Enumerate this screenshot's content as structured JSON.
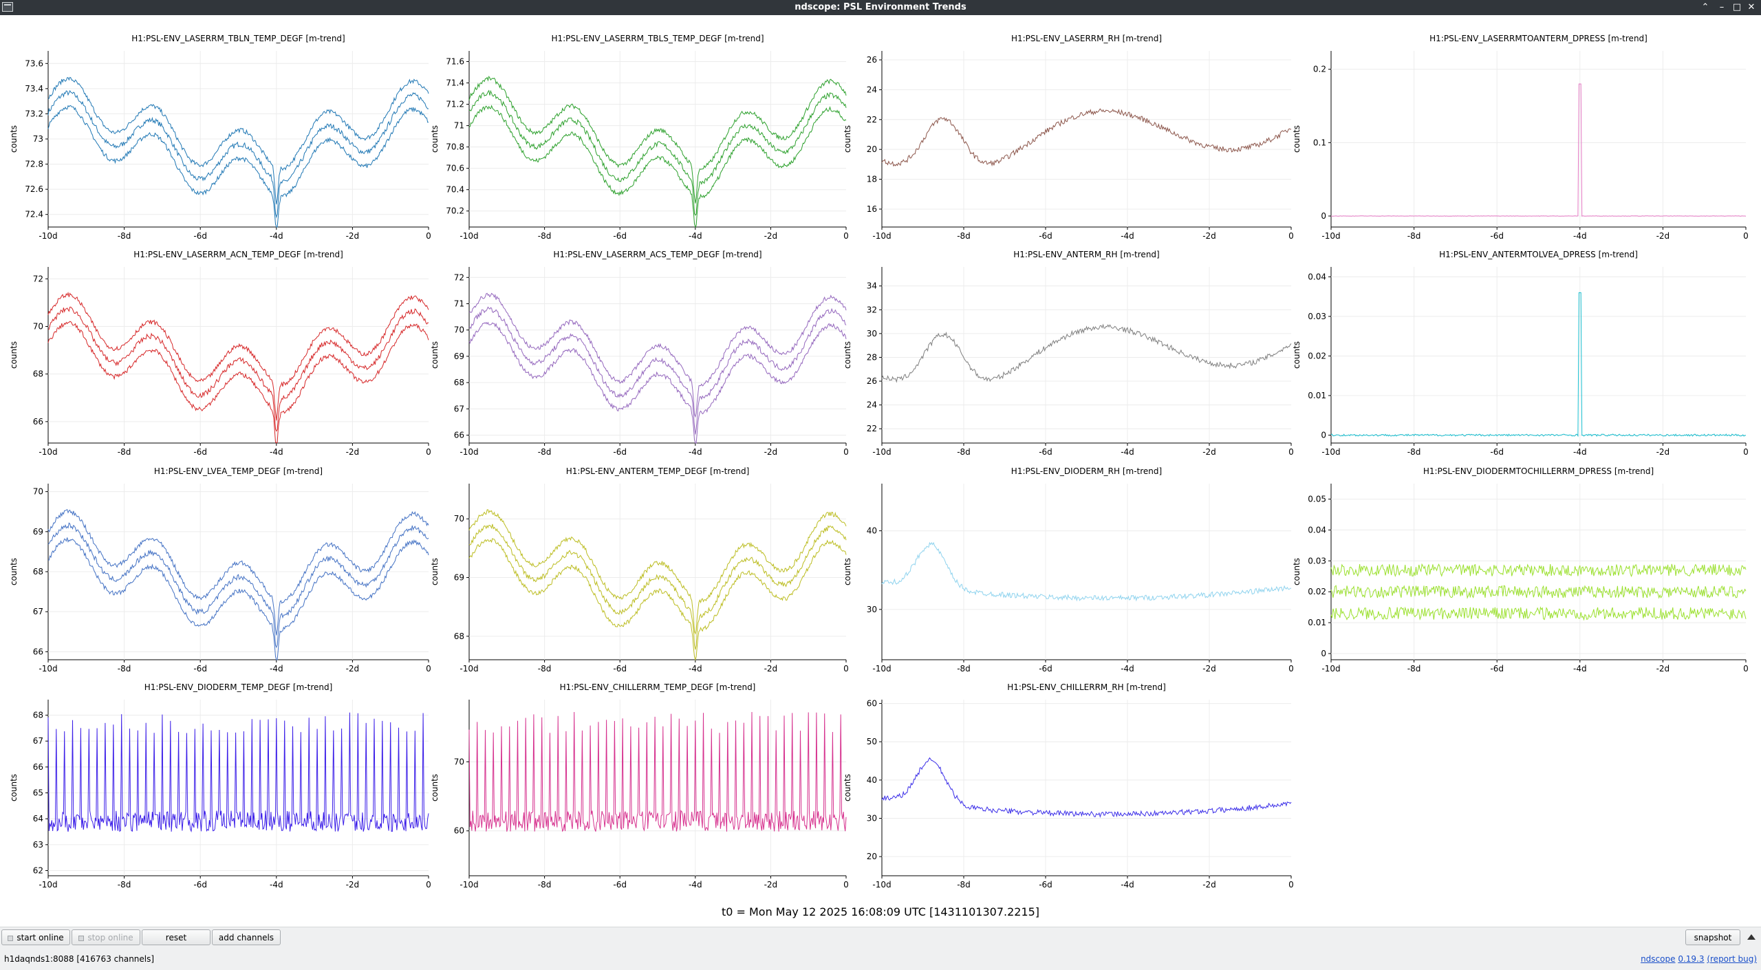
{
  "window": {
    "title": "ndscope: PSL Environment Trends",
    "controls": [
      "minimize-icon",
      "maximize-icon",
      "restore-icon",
      "close-icon"
    ]
  },
  "plots": [
    {
      "title": "H1:PSL-ENV_LASERRM_TBLN_TEMP_DEGF [m-trend]",
      "ylabel": "counts",
      "color": "#1f77b4",
      "style": "band",
      "yticks": [
        "72.4",
        "72.6",
        "72.8",
        "73",
        "73.2",
        "73.4",
        "73.6"
      ],
      "ytick_values": [
        72.4,
        72.6,
        72.8,
        73,
        73.2,
        73.4,
        73.6
      ],
      "ylim": [
        72.3,
        73.7
      ],
      "xticks": [
        "-10d",
        "-8d",
        "-6d",
        "-4d",
        "-2d",
        "0"
      ]
    },
    {
      "title": "H1:PSL-ENV_LASERRM_TBLS_TEMP_DEGF [m-trend]",
      "ylabel": "counts",
      "color": "#2ca02c",
      "style": "band",
      "yticks": [
        "70.2",
        "70.4",
        "70.6",
        "70.8",
        "71",
        "71.2",
        "71.4",
        "71.6"
      ],
      "ytick_values": [
        70.2,
        70.4,
        70.6,
        70.8,
        71,
        71.2,
        71.4,
        71.6
      ],
      "ylim": [
        70.05,
        71.7
      ],
      "xticks": [
        "-10d",
        "-8d",
        "-6d",
        "-4d",
        "-2d",
        "0"
      ]
    },
    {
      "title": "H1:PSL-ENV_LASERRM_RH [m-trend]",
      "ylabel": "counts",
      "color": "#8c564b",
      "style": "line",
      "yticks": [
        "16",
        "18",
        "20",
        "22",
        "24",
        "26"
      ],
      "ytick_values": [
        16,
        18,
        20,
        22,
        24,
        26
      ],
      "ylim": [
        14.8,
        26.6
      ],
      "xticks": [
        "-10d",
        "-8d",
        "-6d",
        "-4d",
        "-2d",
        "0"
      ]
    },
    {
      "title": "H1:PSL-ENV_LASERRMTOANTERM_DPRESS [m-trend]",
      "ylabel": "counts",
      "color": "#e377c2",
      "style": "spike",
      "yticks": [
        "0",
        "0.1",
        "0.2"
      ],
      "ytick_values": [
        0,
        0.1,
        0.2
      ],
      "ylim": [
        -0.015,
        0.225
      ],
      "xticks": [
        "-10d",
        "-8d",
        "-6d",
        "-4d",
        "-2d",
        "0"
      ]
    },
    {
      "title": "H1:PSL-ENV_LASERRM_ACN_TEMP_DEGF [m-trend]",
      "ylabel": "counts",
      "color": "#d62728",
      "style": "band",
      "yticks": [
        "66",
        "68",
        "70",
        "72"
      ],
      "ytick_values": [
        66,
        68,
        70,
        72
      ],
      "ylim": [
        65.1,
        72.5
      ],
      "xticks": [
        "-10d",
        "-8d",
        "-6d",
        "-4d",
        "-2d",
        "0"
      ]
    },
    {
      "title": "H1:PSL-ENV_LASERRM_ACS_TEMP_DEGF [m-trend]",
      "ylabel": "counts",
      "color": "#9467bd",
      "style": "band",
      "yticks": [
        "66",
        "67",
        "68",
        "69",
        "70",
        "71",
        "72"
      ],
      "ytick_values": [
        66,
        67,
        68,
        69,
        70,
        71,
        72
      ],
      "ylim": [
        65.7,
        72.4
      ],
      "xticks": [
        "-10d",
        "-8d",
        "-6d",
        "-4d",
        "-2d",
        "0"
      ]
    },
    {
      "title": "H1:PSL-ENV_ANTERM_RH [m-trend]",
      "ylabel": "counts",
      "color": "#7f7f7f",
      "style": "line",
      "yticks": [
        "22",
        "24",
        "26",
        "28",
        "30",
        "32",
        "34"
      ],
      "ytick_values": [
        22,
        24,
        26,
        28,
        30,
        32,
        34
      ],
      "ylim": [
        20.8,
        35.6
      ],
      "xticks": [
        "-10d",
        "-8d",
        "-6d",
        "-4d",
        "-2d",
        "0"
      ]
    },
    {
      "title": "H1:PSL-ENV_ANTERMTOLVEA_DPRESS [m-trend]",
      "ylabel": "counts",
      "color": "#17becf",
      "style": "spike",
      "yticks": [
        "0",
        "0.01",
        "0.02",
        "0.03",
        "0.04"
      ],
      "ytick_values": [
        0,
        0.01,
        0.02,
        0.03,
        0.04
      ],
      "ylim": [
        -0.002,
        0.0425
      ],
      "xticks": [
        "-10d",
        "-8d",
        "-6d",
        "-4d",
        "-2d",
        "0"
      ]
    },
    {
      "title": "H1:PSL-ENV_LVEA_TEMP_DEGF [m-trend]",
      "ylabel": "counts",
      "color": "#4472c4",
      "style": "band",
      "yticks": [
        "66",
        "67",
        "68",
        "69",
        "70"
      ],
      "ytick_values": [
        66,
        67,
        68,
        69,
        70
      ],
      "ylim": [
        65.8,
        70.2
      ],
      "xticks": [
        "-10d",
        "-8d",
        "-6d",
        "-4d",
        "-2d",
        "0"
      ]
    },
    {
      "title": "H1:PSL-ENV_ANTERM_TEMP_DEGF [m-trend]",
      "ylabel": "counts",
      "color": "#bcbd22",
      "style": "band",
      "yticks": [
        "68",
        "69",
        "70"
      ],
      "ytick_values": [
        68,
        69,
        70
      ],
      "ylim": [
        67.6,
        70.6
      ],
      "xticks": [
        "-10d",
        "-8d",
        "-6d",
        "-4d",
        "-2d",
        "0"
      ]
    },
    {
      "title": "H1:PSL-ENV_DIODERM_RH [m-trend]",
      "ylabel": "counts",
      "color": "#8fd3ee",
      "style": "fuzzy",
      "yticks": [
        "30",
        "40"
      ],
      "ytick_values": [
        30,
        40
      ],
      "ylim": [
        23.6,
        46
      ],
      "xticks": [
        "-10d",
        "-8d",
        "-6d",
        "-4d",
        "-2d",
        "0"
      ]
    },
    {
      "title": "H1:PSL-ENV_DIODERMTOCHILLERRM_DPRESS [m-trend]",
      "ylabel": "counts",
      "color": "#9ae02c",
      "style": "multiband",
      "yticks": [
        "0",
        "0.01",
        "0.02",
        "0.03",
        "0.04",
        "0.05"
      ],
      "ytick_values": [
        0,
        0.01,
        0.02,
        0.03,
        0.04,
        0.05
      ],
      "ylim": [
        -0.002,
        0.055
      ],
      "xticks": [
        "-10d",
        "-8d",
        "-6d",
        "-4d",
        "-2d",
        "0"
      ]
    },
    {
      "title": "H1:PSL-ENV_DIODERM_TEMP_DEGF [m-trend]",
      "ylabel": "counts",
      "color": "#3a1de8",
      "style": "cycling",
      "yticks": [
        "62",
        "63",
        "64",
        "65",
        "66",
        "67",
        "68"
      ],
      "ytick_values": [
        62,
        63,
        64,
        65,
        66,
        67,
        68
      ],
      "ylim": [
        61.8,
        68.6
      ],
      "xticks": [
        "-10d",
        "-8d",
        "-6d",
        "-4d",
        "-2d",
        "0"
      ]
    },
    {
      "title": "H1:PSL-ENV_CHILLERRM_TEMP_DEGF [m-trend]",
      "ylabel": "counts",
      "color": "#d6318e",
      "style": "cycling",
      "yticks": [
        "60",
        "70"
      ],
      "ytick_values": [
        60,
        70
      ],
      "ylim": [
        53.5,
        79
      ],
      "xticks": [
        "-10d",
        "-8d",
        "-6d",
        "-4d",
        "-2d",
        "0"
      ]
    },
    {
      "title": "H1:PSL-ENV_CHILLERRM_RH [m-trend]",
      "ylabel": "counts",
      "color": "#3a2de8",
      "style": "fuzzy",
      "yticks": [
        "20",
        "30",
        "40",
        "50",
        "60"
      ],
      "ytick_values": [
        20,
        30,
        40,
        50,
        60
      ],
      "ylim": [
        15,
        61
      ],
      "xticks": [
        "-10d",
        "-8d",
        "-6d",
        "-4d",
        "-2d",
        "0"
      ]
    }
  ],
  "t0": "t0 = Mon May 12 2025 16:08:09 UTC [1431101307.2215]",
  "bottom": {
    "start_online": "start online",
    "stop_online": "stop online",
    "reset": "reset",
    "add_channels": "add channels",
    "snapshot": "snapshot",
    "status": "h1daqnds1:8088  [416763 channels]",
    "app_name": "ndscope",
    "version": "0.19.3",
    "report_bug": "(report bug)"
  }
}
